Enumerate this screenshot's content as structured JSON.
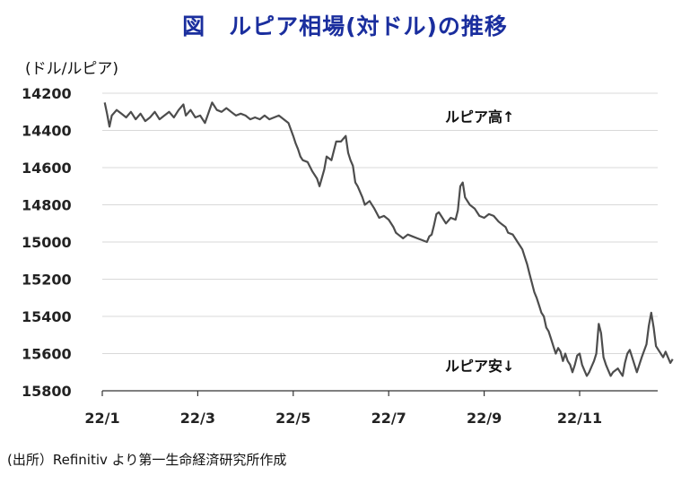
{
  "title": "図　ルピア相場(対ドル)の推移",
  "unit_label": "(ドル/ルピア)",
  "source": "(出所）Refinitiv より第一生命経済研究所作成",
  "chart_data": {
    "type": "line",
    "inverted_y": true,
    "ylim": [
      14200,
      15800
    ],
    "yticks": [
      14200,
      14400,
      14600,
      14800,
      15000,
      15200,
      15400,
      15600,
      15800
    ],
    "xlim": [
      0,
      12
    ],
    "xticks": [
      {
        "pos": 0,
        "label": "22/1"
      },
      {
        "pos": 2,
        "label": "22/3"
      },
      {
        "pos": 4,
        "label": "22/5"
      },
      {
        "pos": 6,
        "label": "22/7"
      },
      {
        "pos": 8,
        "label": "22/9"
      },
      {
        "pos": 10,
        "label": "22/11"
      }
    ],
    "annotations": {
      "top": "ルピア高↑",
      "bottom": "ルピア安↓"
    },
    "series": [
      {
        "color": "#4d4d4d",
        "points": [
          [
            0.05,
            14250
          ],
          [
            0.1,
            14310
          ],
          [
            0.15,
            14380
          ],
          [
            0.2,
            14320
          ],
          [
            0.3,
            14290
          ],
          [
            0.4,
            14310
          ],
          [
            0.5,
            14330
          ],
          [
            0.6,
            14300
          ],
          [
            0.7,
            14340
          ],
          [
            0.8,
            14310
          ],
          [
            0.9,
            14350
          ],
          [
            1.0,
            14330
          ],
          [
            1.1,
            14300
          ],
          [
            1.2,
            14340
          ],
          [
            1.3,
            14320
          ],
          [
            1.4,
            14300
          ],
          [
            1.5,
            14330
          ],
          [
            1.6,
            14290
          ],
          [
            1.7,
            14260
          ],
          [
            1.75,
            14320
          ],
          [
            1.85,
            14290
          ],
          [
            1.95,
            14330
          ],
          [
            2.05,
            14320
          ],
          [
            2.15,
            14360
          ],
          [
            2.22,
            14310
          ],
          [
            2.3,
            14250
          ],
          [
            2.4,
            14290
          ],
          [
            2.5,
            14300
          ],
          [
            2.6,
            14280
          ],
          [
            2.7,
            14300
          ],
          [
            2.8,
            14320
          ],
          [
            2.9,
            14310
          ],
          [
            3.0,
            14320
          ],
          [
            3.1,
            14340
          ],
          [
            3.2,
            14330
          ],
          [
            3.3,
            14340
          ],
          [
            3.4,
            14320
          ],
          [
            3.5,
            14340
          ],
          [
            3.6,
            14330
          ],
          [
            3.7,
            14320
          ],
          [
            3.8,
            14340
          ],
          [
            3.9,
            14360
          ],
          [
            4.0,
            14430
          ],
          [
            4.05,
            14470
          ],
          [
            4.1,
            14500
          ],
          [
            4.15,
            14540
          ],
          [
            4.2,
            14560
          ],
          [
            4.3,
            14570
          ],
          [
            4.4,
            14620
          ],
          [
            4.5,
            14660
          ],
          [
            4.55,
            14700
          ],
          [
            4.65,
            14610
          ],
          [
            4.7,
            14540
          ],
          [
            4.8,
            14560
          ],
          [
            4.9,
            14460
          ],
          [
            5.0,
            14460
          ],
          [
            5.1,
            14430
          ],
          [
            5.15,
            14520
          ],
          [
            5.2,
            14560
          ],
          [
            5.25,
            14590
          ],
          [
            5.3,
            14680
          ],
          [
            5.35,
            14700
          ],
          [
            5.45,
            14760
          ],
          [
            5.5,
            14800
          ],
          [
            5.6,
            14780
          ],
          [
            5.7,
            14820
          ],
          [
            5.8,
            14870
          ],
          [
            5.9,
            14860
          ],
          [
            6.0,
            14880
          ],
          [
            6.1,
            14920
          ],
          [
            6.15,
            14950
          ],
          [
            6.2,
            14960
          ],
          [
            6.3,
            14980
          ],
          [
            6.4,
            14960
          ],
          [
            6.5,
            14970
          ],
          [
            6.6,
            14980
          ],
          [
            6.7,
            14990
          ],
          [
            6.8,
            15000
          ],
          [
            6.85,
            14970
          ],
          [
            6.9,
            14960
          ],
          [
            6.95,
            14910
          ],
          [
            7.0,
            14850
          ],
          [
            7.05,
            14840
          ],
          [
            7.1,
            14860
          ],
          [
            7.2,
            14900
          ],
          [
            7.3,
            14870
          ],
          [
            7.4,
            14880
          ],
          [
            7.45,
            14830
          ],
          [
            7.5,
            14700
          ],
          [
            7.55,
            14680
          ],
          [
            7.6,
            14760
          ],
          [
            7.7,
            14800
          ],
          [
            7.8,
            14820
          ],
          [
            7.9,
            14860
          ],
          [
            8.0,
            14870
          ],
          [
            8.1,
            14850
          ],
          [
            8.2,
            14860
          ],
          [
            8.3,
            14890
          ],
          [
            8.35,
            14900
          ],
          [
            8.45,
            14920
          ],
          [
            8.5,
            14950
          ],
          [
            8.6,
            14960
          ],
          [
            8.7,
            15000
          ],
          [
            8.75,
            15020
          ],
          [
            8.8,
            15040
          ],
          [
            8.85,
            15080
          ],
          [
            8.9,
            15120
          ],
          [
            8.95,
            15170
          ],
          [
            9.0,
            15220
          ],
          [
            9.05,
            15270
          ],
          [
            9.1,
            15300
          ],
          [
            9.15,
            15340
          ],
          [
            9.2,
            15380
          ],
          [
            9.25,
            15400
          ],
          [
            9.3,
            15460
          ],
          [
            9.35,
            15480
          ],
          [
            9.4,
            15520
          ],
          [
            9.45,
            15560
          ],
          [
            9.5,
            15600
          ],
          [
            9.55,
            15570
          ],
          [
            9.6,
            15590
          ],
          [
            9.65,
            15640
          ],
          [
            9.7,
            15600
          ],
          [
            9.75,
            15640
          ],
          [
            9.8,
            15660
          ],
          [
            9.85,
            15700
          ],
          [
            9.9,
            15660
          ],
          [
            9.95,
            15610
          ],
          [
            10.0,
            15600
          ],
          [
            10.05,
            15660
          ],
          [
            10.1,
            15690
          ],
          [
            10.15,
            15720
          ],
          [
            10.2,
            15700
          ],
          [
            10.25,
            15670
          ],
          [
            10.3,
            15640
          ],
          [
            10.35,
            15600
          ],
          [
            10.4,
            15440
          ],
          [
            10.45,
            15490
          ],
          [
            10.5,
            15620
          ],
          [
            10.55,
            15660
          ],
          [
            10.6,
            15690
          ],
          [
            10.65,
            15720
          ],
          [
            10.7,
            15700
          ],
          [
            10.8,
            15680
          ],
          [
            10.85,
            15700
          ],
          [
            10.9,
            15720
          ],
          [
            10.95,
            15650
          ],
          [
            11.0,
            15600
          ],
          [
            11.05,
            15580
          ],
          [
            11.1,
            15620
          ],
          [
            11.2,
            15700
          ],
          [
            11.3,
            15620
          ],
          [
            11.4,
            15550
          ],
          [
            11.45,
            15450
          ],
          [
            11.5,
            15380
          ],
          [
            11.55,
            15460
          ],
          [
            11.6,
            15560
          ],
          [
            11.7,
            15600
          ],
          [
            11.75,
            15620
          ],
          [
            11.8,
            15590
          ],
          [
            11.85,
            15620
          ],
          [
            11.9,
            15650
          ],
          [
            11.95,
            15630
          ]
        ]
      }
    ]
  }
}
